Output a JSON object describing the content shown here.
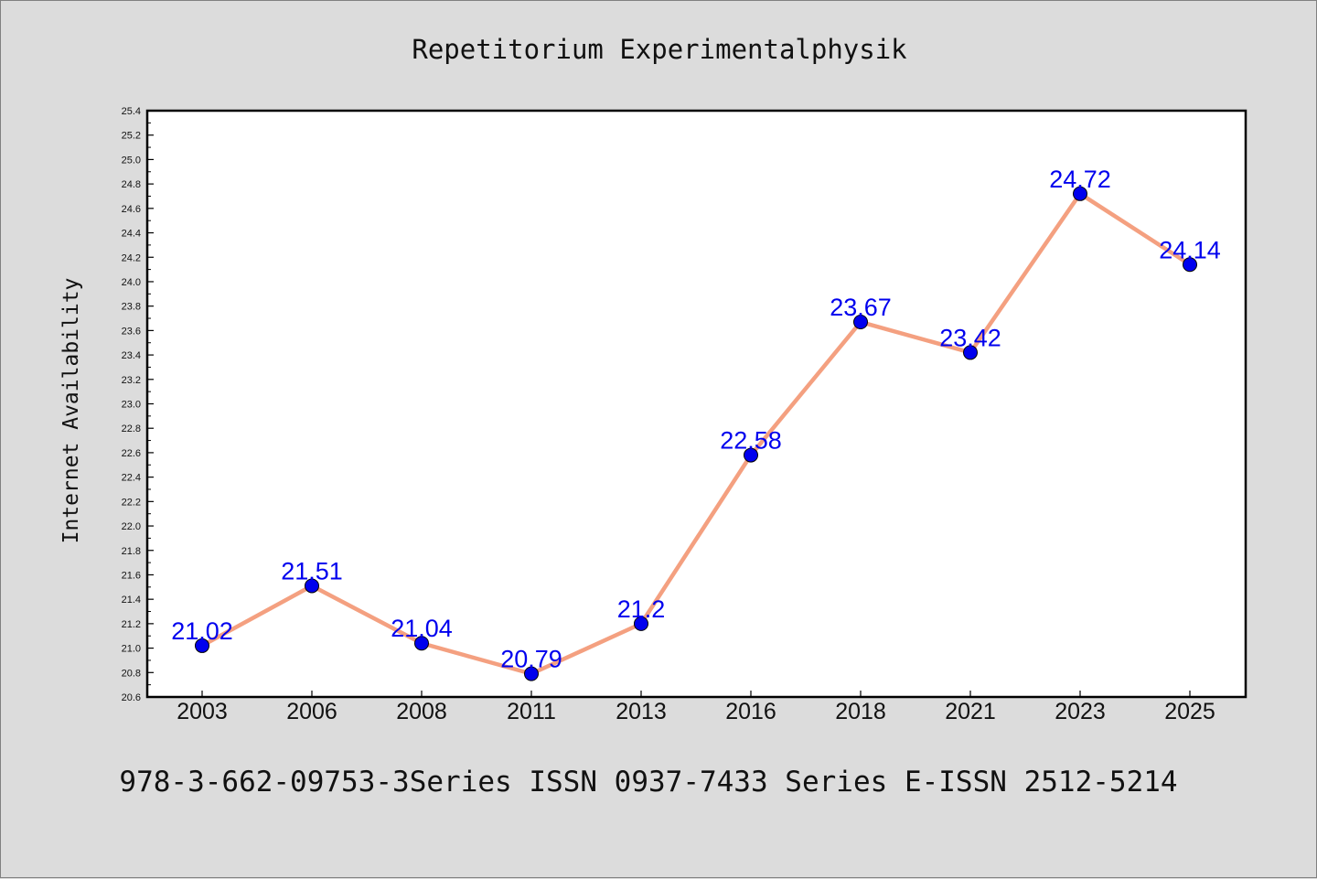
{
  "chart_data": {
    "type": "line",
    "title": "Repetitorium Experimentalphysik",
    "footer": "978-3-662-09753-3Series ISSN 0937-7433 Series E-ISSN 2512-5214",
    "xlabel": "",
    "ylabel": "Internet Availability",
    "categories": [
      "2003",
      "2006",
      "2008",
      "2011",
      "2013",
      "2016",
      "2018",
      "2021",
      "2023",
      "2025"
    ],
    "series": [
      {
        "values": [
          21.02,
          21.51,
          21.04,
          20.79,
          21.2,
          22.58,
          23.67,
          23.42,
          24.72,
          24.14
        ]
      }
    ],
    "data_labels": [
      "21.02",
      "21.51",
      "21.04",
      "20.79",
      "21.2",
      "22.58",
      "23.67",
      "23.42",
      "24.72",
      "24.14"
    ],
    "ylim": [
      20.6,
      25.4
    ],
    "yticks": [
      "20.6",
      "20.8",
      "21.0",
      "21.2",
      "21.4",
      "21.6",
      "21.8",
      "22.0",
      "22.2",
      "22.4",
      "22.6",
      "22.8",
      "23.0",
      "23.2",
      "23.4",
      "23.6",
      "23.8",
      "24.0",
      "24.2",
      "24.4",
      "24.6",
      "24.8",
      "25.0",
      "25.2",
      "25.4"
    ],
    "grid": false,
    "legend": "none",
    "colors": {
      "line": "#f4a080",
      "marker": "#0000ee",
      "labels": "#0000ee"
    }
  }
}
